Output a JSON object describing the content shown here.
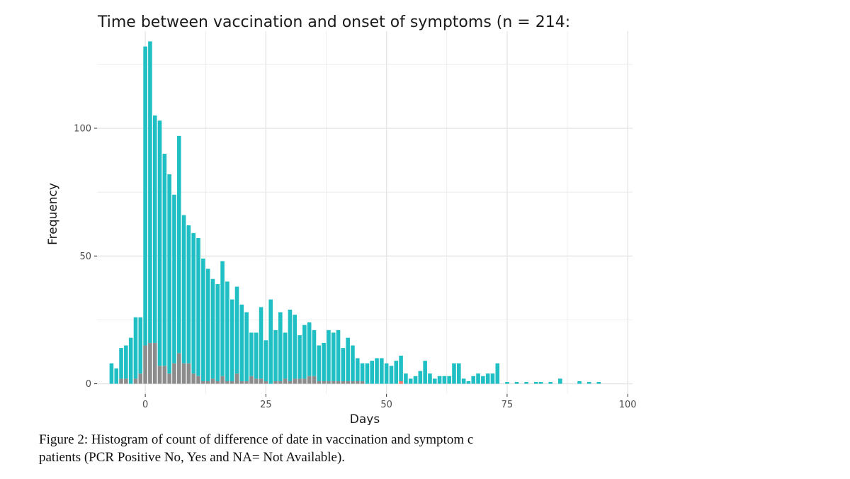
{
  "caption": {
    "line1": "Figure 2: Histogram of count of difference of date in vaccination and symptom c",
    "line2": "patients (PCR Positive No, Yes and NA= Not Available)."
  },
  "colors": {
    "Yes": "#1fbfc4",
    "No": "#f8766d",
    "NA": "#8c8c8c",
    "panel_bg": "#ffffff",
    "grid": "#e6e6e6"
  },
  "chart_data": {
    "type": "bar",
    "title": "Time between vaccination and onset of symptoms (n = 214:",
    "xlabel": "Days",
    "ylabel": "Frequency",
    "xlim": [
      -10,
      101
    ],
    "ylim": [
      -4,
      138
    ],
    "xticks": [
      0,
      25,
      50,
      75,
      100
    ],
    "yticks": [
      0,
      50,
      100
    ],
    "grid": true,
    "stacked": true,
    "x": [
      -7,
      -6,
      -5,
      -4,
      -3,
      -2,
      -1,
      0,
      1,
      2,
      3,
      4,
      5,
      6,
      7,
      8,
      9,
      10,
      11,
      12,
      13,
      14,
      15,
      16,
      17,
      18,
      19,
      20,
      21,
      22,
      23,
      24,
      25,
      26,
      27,
      28,
      29,
      30,
      31,
      32,
      33,
      34,
      35,
      36,
      37,
      38,
      39,
      40,
      41,
      42,
      43,
      44,
      45,
      46,
      47,
      48,
      49,
      50,
      51,
      52,
      53,
      54,
      55,
      56,
      57,
      58,
      59,
      60,
      61,
      62,
      63,
      64,
      65,
      66,
      67,
      68,
      69,
      70,
      71,
      72,
      73,
      75,
      77,
      79,
      81,
      82,
      84,
      86,
      90,
      92,
      94
    ],
    "series": [
      {
        "name": "NA",
        "values": [
          0,
          0,
          2,
          2,
          0,
          2,
          4,
          15,
          16,
          16,
          7,
          7,
          4,
          8,
          12,
          8,
          8,
          4,
          3,
          1,
          1,
          2,
          1,
          3,
          1,
          1,
          4,
          1,
          1,
          3,
          2,
          2,
          1,
          0,
          1,
          1,
          2,
          1,
          2,
          2,
          2,
          3,
          3,
          1,
          1,
          1,
          1,
          1,
          1,
          1,
          1,
          1,
          1,
          0,
          0,
          0,
          0,
          0,
          0,
          0,
          0,
          0,
          0,
          0,
          0,
          0,
          0,
          0,
          0,
          0,
          0,
          0,
          0,
          0,
          0,
          0,
          0,
          0,
          0,
          0,
          0,
          0,
          0,
          0,
          0,
          0,
          0,
          0,
          0,
          0,
          0
        ]
      },
      {
        "name": "No",
        "values": [
          0,
          0,
          0,
          0,
          0,
          0,
          0,
          0,
          0,
          0,
          0,
          0,
          0,
          0,
          0,
          0,
          0,
          0,
          0,
          0,
          0,
          0,
          0,
          0,
          0,
          0,
          0,
          0,
          0,
          0,
          0,
          0,
          0,
          0,
          0,
          0,
          0,
          0,
          0,
          0,
          0,
          0,
          0,
          0,
          0,
          0,
          0,
          0,
          0,
          0,
          0,
          0,
          0,
          0,
          0,
          0,
          0,
          0,
          0,
          0,
          1,
          0,
          0,
          0,
          0,
          0,
          0,
          0,
          0,
          0,
          0,
          0,
          0,
          0,
          0,
          0,
          0,
          0,
          0,
          0,
          0,
          0,
          0,
          0,
          0,
          0,
          0,
          0,
          0,
          0,
          0
        ]
      },
      {
        "name": "Yes",
        "values": [
          8,
          6,
          12,
          13,
          18,
          24,
          22,
          117,
          118,
          89,
          96,
          83,
          78,
          66,
          85,
          58,
          54,
          55,
          54,
          48,
          44,
          39,
          38,
          45,
          39,
          32,
          34,
          30,
          27,
          17,
          18,
          28,
          16,
          33,
          20,
          27,
          18,
          28,
          25,
          17,
          21,
          21,
          18,
          14,
          15,
          20,
          19,
          20,
          13,
          17,
          14,
          9,
          7,
          8,
          9,
          10,
          10,
          8,
          7,
          9,
          10,
          4,
          2,
          3,
          5,
          9,
          4,
          2,
          3,
          3,
          3,
          8,
          8,
          2,
          1,
          3,
          4,
          3,
          4,
          4,
          8,
          0.7,
          0.7,
          0.7,
          0.7,
          0.7,
          0.7,
          2,
          1,
          0.7,
          0.7
        ]
      }
    ]
  }
}
